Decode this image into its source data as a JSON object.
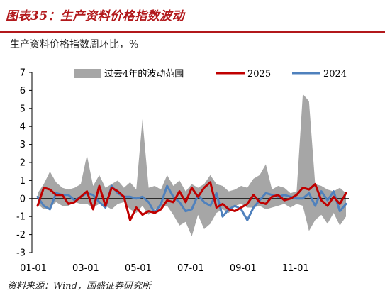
{
  "header": {
    "title": "图表35：生产资料价格指数波动",
    "subtitle": "生产资料价格指数周环比，%"
  },
  "footer": {
    "source": "资料来源：Wind，国盛证券研究所"
  },
  "colors": {
    "accent": "#b2181b",
    "band": "#a6a6a6",
    "line2025": "#c00000",
    "line2024": "#4f81bd"
  },
  "chart_data": {
    "type": "line",
    "ylim": [
      -3,
      7
    ],
    "yticks": [
      "7",
      "6",
      "5",
      "4",
      "3",
      "2",
      "1",
      "0",
      "-1",
      "-2",
      "-3"
    ],
    "xtick_labels": [
      "01-01",
      "03-01",
      "05-01",
      "07-01",
      "09-01",
      "11-01"
    ],
    "xtick_weeks": [
      0,
      8.5,
      17,
      25.5,
      34,
      42.5
    ],
    "legend": [
      "过去4年的波动范围",
      "2025",
      "2024"
    ],
    "band": {
      "name": "过去4年的波动范围",
      "upper": [
        0.3,
        0.8,
        1.5,
        0.9,
        0.6,
        0.5,
        0.6,
        0.8,
        2.4,
        0.7,
        1.3,
        0.6,
        0.8,
        1.0,
        0.6,
        0.9,
        0.5,
        4.4,
        0.6,
        0.7,
        0.5,
        1.3,
        0.7,
        1.0,
        0.4,
        0.8,
        0.6,
        0.8,
        1.3,
        0.8,
        0.7,
        0.4,
        0.5,
        0.7,
        0.6,
        1.1,
        1.3,
        1.9,
        0.5,
        0.7,
        0.6,
        0.3,
        0.4,
        5.8,
        5.4,
        0.8,
        0.7,
        0.5,
        0.4,
        0.6,
        0.3
      ],
      "lower": [
        -0.3,
        -0.6,
        -0.5,
        -0.2,
        -0.4,
        -0.4,
        -0.2,
        -0.3,
        -0.3,
        -0.5,
        -0.3,
        -0.4,
        -0.6,
        -0.3,
        -0.2,
        -0.6,
        -0.8,
        -0.4,
        -0.9,
        -0.6,
        -0.5,
        -0.4,
        -0.9,
        -1.5,
        -1.3,
        -2.1,
        -0.9,
        -1.7,
        -1.4,
        -0.8,
        -0.6,
        -0.8,
        -0.4,
        -0.3,
        -0.5,
        -0.5,
        -0.4,
        -0.6,
        -0.5,
        -0.4,
        -0.3,
        -0.5,
        -0.3,
        -0.4,
        -1.8,
        -1.2,
        -0.9,
        -1.4,
        -0.8,
        -1.5,
        -1.0
      ]
    },
    "series": [
      {
        "name": "2025",
        "values": [
          -0.4,
          0.6,
          0.5,
          0.2,
          0.2,
          -0.3,
          -0.2,
          0.1,
          0.4,
          -0.6,
          0.7,
          -0.4,
          0.6,
          0.4,
          0.1,
          -1.2,
          -0.5,
          -0.9,
          -0.7,
          -0.8,
          -0.6,
          -0.1,
          -0.2,
          0.4,
          -0.2,
          0.6,
          0.1,
          0.6,
          0.9,
          -0.5,
          -0.3,
          -0.6,
          -0.7,
          -0.5,
          -0.3,
          0.2,
          -0.2,
          -0.3,
          0.1,
          0.2,
          -0.1,
          0.0,
          0.2,
          0.6,
          0.5,
          0.8,
          -0.1,
          -0.4,
          0.1,
          -0.3,
          0.3
        ]
      },
      {
        "name": "2024",
        "values": [
          0.1,
          -0.4,
          -0.6,
          0.3,
          0.2,
          0.2,
          -0.1,
          0.1,
          0.3,
          0.2,
          -0.2,
          -0.5,
          0.7,
          0.3,
          0.1,
          0.1,
          0.0,
          0.1,
          -0.2,
          -0.8,
          -0.3,
          0.7,
          0.1,
          -0.2,
          -0.7,
          -0.6,
          0.2,
          -0.2,
          -0.4,
          0.3,
          -1.0,
          -0.6,
          -0.4,
          -0.6,
          -1.2,
          -0.5,
          -0.1,
          0.3,
          0.2,
          0.1,
          0.2,
          0.1,
          0.0,
          0.0,
          0.3,
          -0.4,
          0.4,
          -0.1,
          0.4,
          -0.7,
          -0.3
        ]
      }
    ]
  }
}
